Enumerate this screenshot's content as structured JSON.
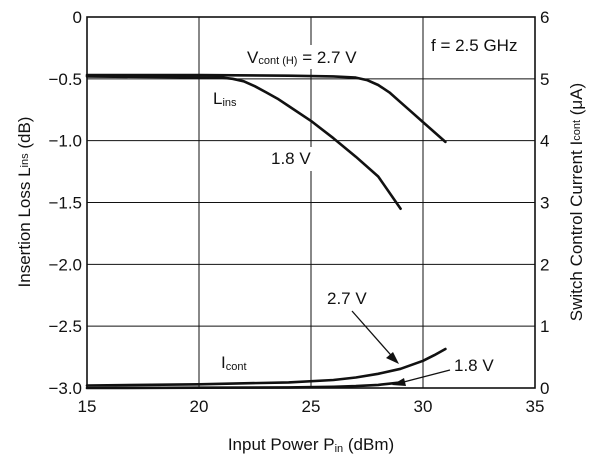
{
  "chart_data": {
    "type": "line",
    "x_axis": {
      "label_main": "Input Power  P",
      "label_sub": "in",
      "label_unit": " (dBm)",
      "range": [
        15,
        35
      ],
      "ticks": [
        "15",
        "20",
        "25",
        "30",
        "35"
      ]
    },
    "y_left_axis": {
      "label_pre": "Insertion Loss  L",
      "label_sub": "ins",
      "label_unit": " (dB)",
      "range": [
        -3.0,
        0
      ],
      "ticks": [
        "0",
        "−0.5",
        "−1.0",
        "−1.5",
        "−2.0",
        "−2.5",
        "−3.0"
      ]
    },
    "y_right_axis": {
      "label_pre": "Switch Control Current  I",
      "label_sub": "cont",
      "label_unit": " (μA)",
      "range": [
        0,
        6
      ],
      "ticks": [
        "0",
        "1",
        "2",
        "3",
        "4",
        "5",
        "6"
      ]
    },
    "grid": true,
    "series": [
      {
        "axis": "left",
        "label": "Vcont(H) = 2.7 V",
        "x": [
          15,
          20,
          24,
          26,
          27,
          27.5,
          28,
          28.5,
          29,
          29.5,
          30,
          30.5,
          31
        ],
        "y": [
          -0.47,
          -0.47,
          -0.475,
          -0.48,
          -0.49,
          -0.51,
          -0.55,
          -0.61,
          -0.69,
          -0.77,
          -0.85,
          -0.93,
          -1.01
        ]
      },
      {
        "axis": "left",
        "label": "1.8 V",
        "x": [
          15,
          18,
          21,
          21.5,
          22,
          22.5,
          23,
          23.5,
          24,
          25,
          26,
          27,
          28,
          29
        ],
        "y": [
          -0.48,
          -0.485,
          -0.49,
          -0.5,
          -0.52,
          -0.56,
          -0.61,
          -0.66,
          -0.72,
          -0.84,
          -0.98,
          -1.13,
          -1.29,
          -1.55
        ]
      },
      {
        "axis": "right",
        "label": "2.7 V",
        "x": [
          15,
          20,
          24,
          26,
          27,
          28,
          29,
          30,
          30.5,
          31
        ],
        "y": [
          0.04,
          0.06,
          0.09,
          0.13,
          0.17,
          0.23,
          0.31,
          0.44,
          0.53,
          0.63
        ]
      },
      {
        "axis": "right",
        "label": "1.8 V",
        "x": [
          15,
          20,
          24,
          26,
          27,
          28,
          28.5,
          29
        ],
        "y": [
          0.0,
          0.005,
          0.01,
          0.02,
          0.03,
          0.05,
          0.07,
          0.09
        ]
      }
    ],
    "annotations": {
      "freq": "f = 2.5 GHz",
      "vcont_main": "V",
      "vcont_sub": "cont (H)",
      "vcont_rest": " = 2.7 V",
      "lins_main": "L",
      "lins_sub": "ins",
      "lins_18": "1.8 V",
      "icont_main": "I",
      "icont_sub": "cont",
      "icont_27": "2.7 V",
      "icont_18": "1.8 V"
    }
  }
}
